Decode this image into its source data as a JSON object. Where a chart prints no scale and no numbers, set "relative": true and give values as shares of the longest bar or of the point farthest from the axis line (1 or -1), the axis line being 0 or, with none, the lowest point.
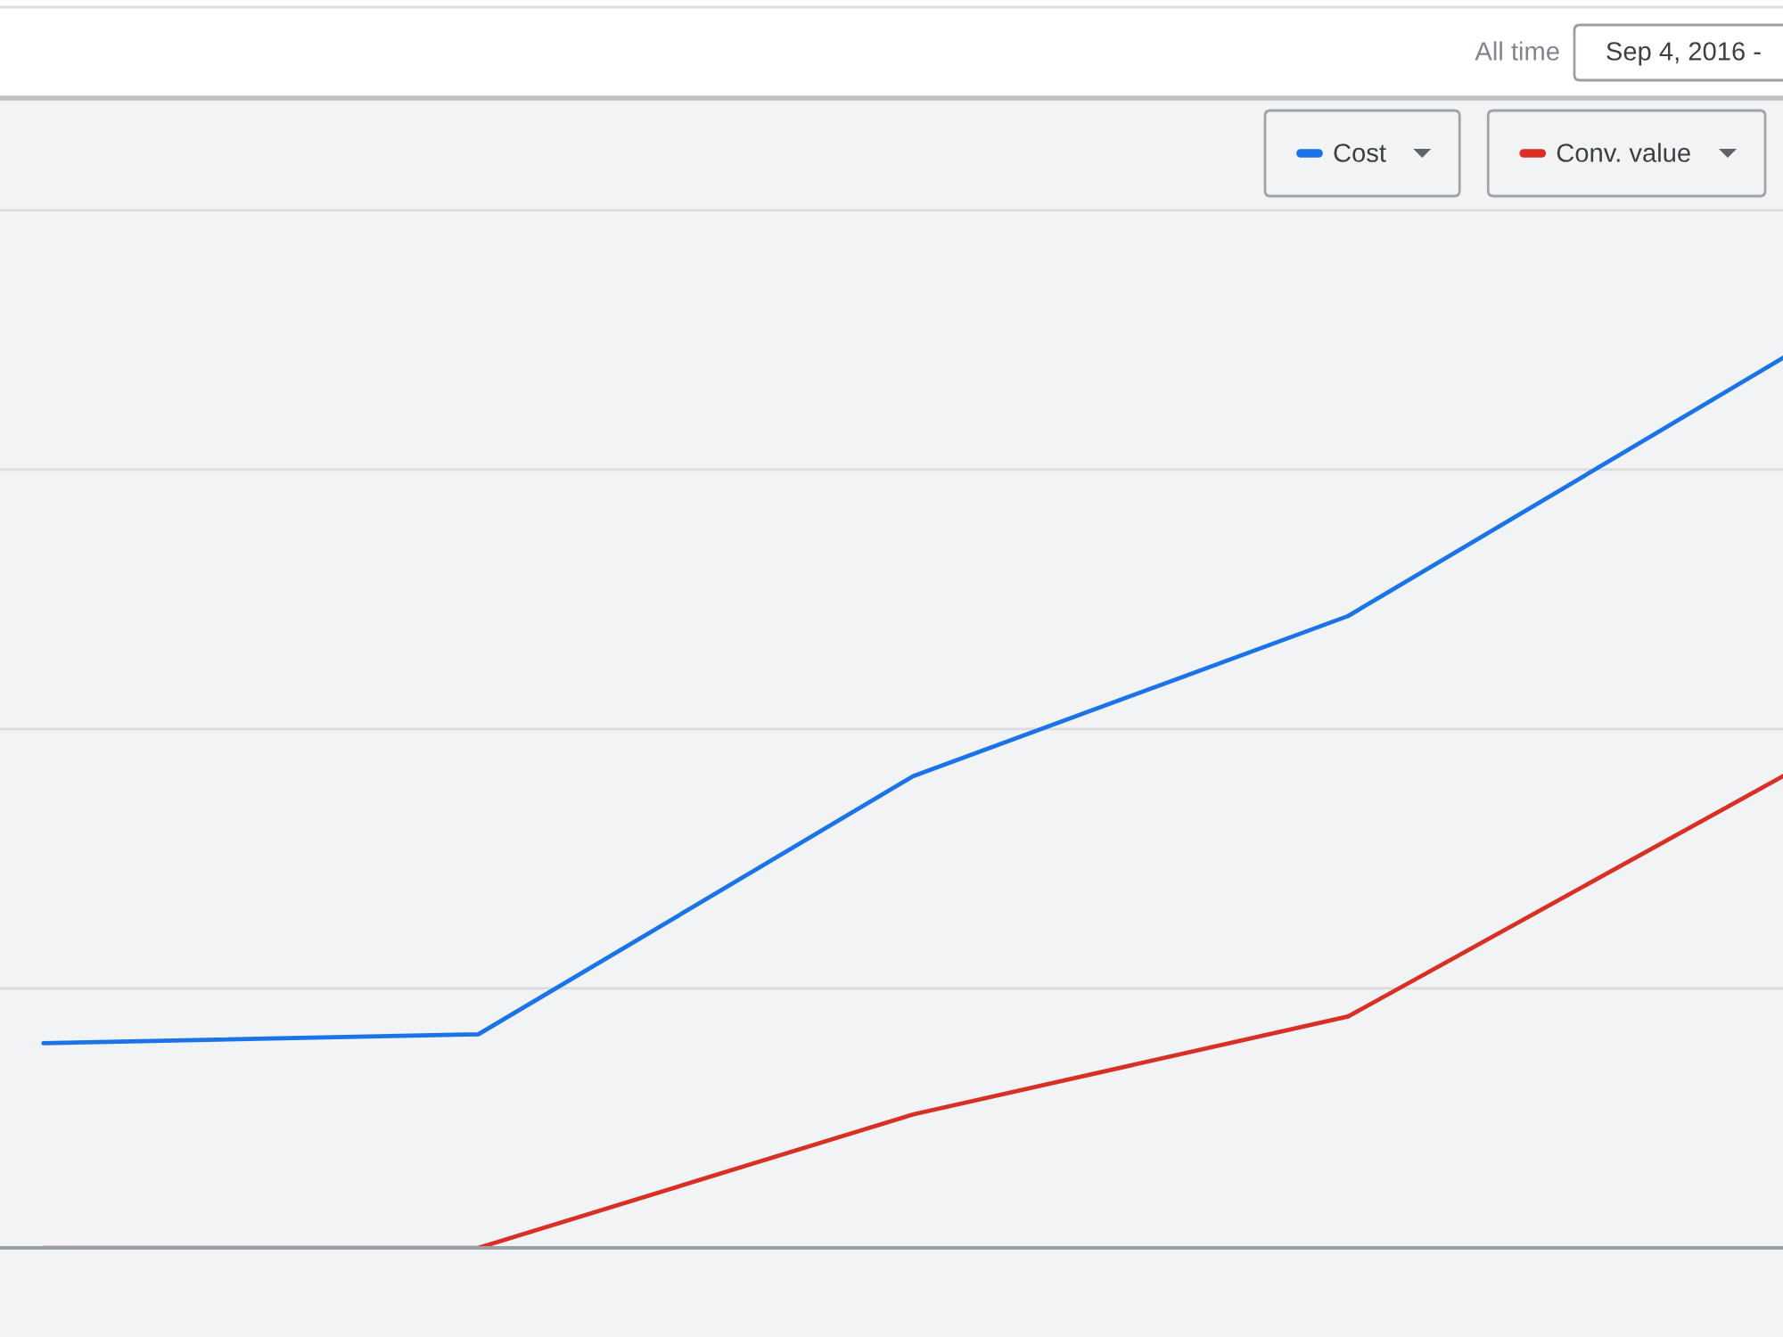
{
  "chart_data": {
    "type": "line",
    "relative": true,
    "categories": [
      null,
      null,
      null,
      null,
      null
    ],
    "series": [
      {
        "name": "Cost",
        "color": "#1a73e8",
        "values": [
          0.23,
          0.24,
          0.53,
          0.71,
          1
        ]
      },
      {
        "name": "Conv. value",
        "color": "#d93025",
        "values": [
          0,
          0,
          0.15,
          0.26,
          0.53
        ]
      }
    ],
    "grid": "y",
    "legend": "top right",
    "annotations": [
      "All time",
      "Sep 4, 2016 -"
    ]
  }
}
